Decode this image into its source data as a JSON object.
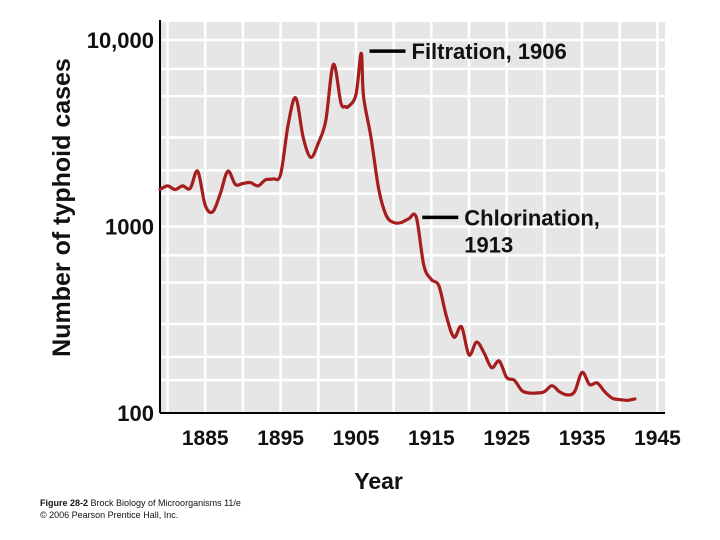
{
  "chart_data": {
    "type": "line",
    "title": "",
    "xlabel": "Year",
    "ylabel": "Number of typhoid cases",
    "yscale": "log",
    "xlim": [
      1879,
      1946
    ],
    "ylim": [
      100,
      10000
    ],
    "x_ticks": [
      1885,
      1895,
      1905,
      1915,
      1925,
      1935,
      1945
    ],
    "x_tick_labels": [
      "1885",
      "1895",
      "1905",
      "1915",
      "1925",
      "1935",
      "1945"
    ],
    "y_ticks": [
      100,
      1000,
      10000
    ],
    "y_tick_labels": [
      "100",
      "1000",
      "10,000"
    ],
    "grid": true,
    "series": [
      {
        "name": "Typhoid cases",
        "color": "#a51d1d",
        "x": [
          1879,
          1880,
          1881,
          1882,
          1883,
          1884,
          1885,
          1886,
          1887,
          1888,
          1889,
          1890,
          1891,
          1892,
          1893,
          1894,
          1895,
          1896,
          1897,
          1898,
          1899,
          1900,
          1901,
          1902,
          1903,
          1903.6,
          1904,
          1905,
          1905.7,
          1906,
          1907,
          1908,
          1909,
          1910,
          1911,
          1912,
          1913,
          1914,
          1915,
          1916,
          1917,
          1918,
          1919,
          1920,
          1921,
          1922,
          1923,
          1924,
          1925,
          1926,
          1927,
          1928,
          1929,
          1930,
          1931,
          1932,
          1933,
          1934,
          1935,
          1936,
          1937,
          1938,
          1939,
          1940,
          1941,
          1942
        ],
        "values": [
          1580,
          1650,
          1580,
          1650,
          1600,
          1980,
          1300,
          1200,
          1500,
          1980,
          1680,
          1700,
          1720,
          1650,
          1780,
          1800,
          1900,
          3500,
          4900,
          3000,
          2350,
          2800,
          3700,
          7400,
          4600,
          4400,
          4400,
          5100,
          8500,
          5000,
          3000,
          1600,
          1150,
          1050,
          1050,
          1100,
          1120,
          620,
          520,
          480,
          330,
          255,
          290,
          205,
          240,
          210,
          175,
          190,
          155,
          150,
          132,
          128,
          128,
          130,
          140,
          130,
          125,
          130,
          165,
          142,
          145,
          130,
          120,
          118,
          117,
          119
        ]
      }
    ],
    "annotations": [
      {
        "text": "Filtration, 1906",
        "year": 1906
      },
      {
        "text_line1": "Chlorination,",
        "text_line2": "1913",
        "year": 1913
      }
    ]
  },
  "caption": {
    "line1_bold": "Figure 28-2",
    "line1_rest": "Brock Biology of Microorganisms 11/e",
    "line2": "© 2006 Pearson Prentice Hall, Inc."
  },
  "colors": {
    "plot_bg": "#e6e6e6",
    "grid": "#ffffff",
    "line": "#a51d1d",
    "text": "#111111"
  }
}
